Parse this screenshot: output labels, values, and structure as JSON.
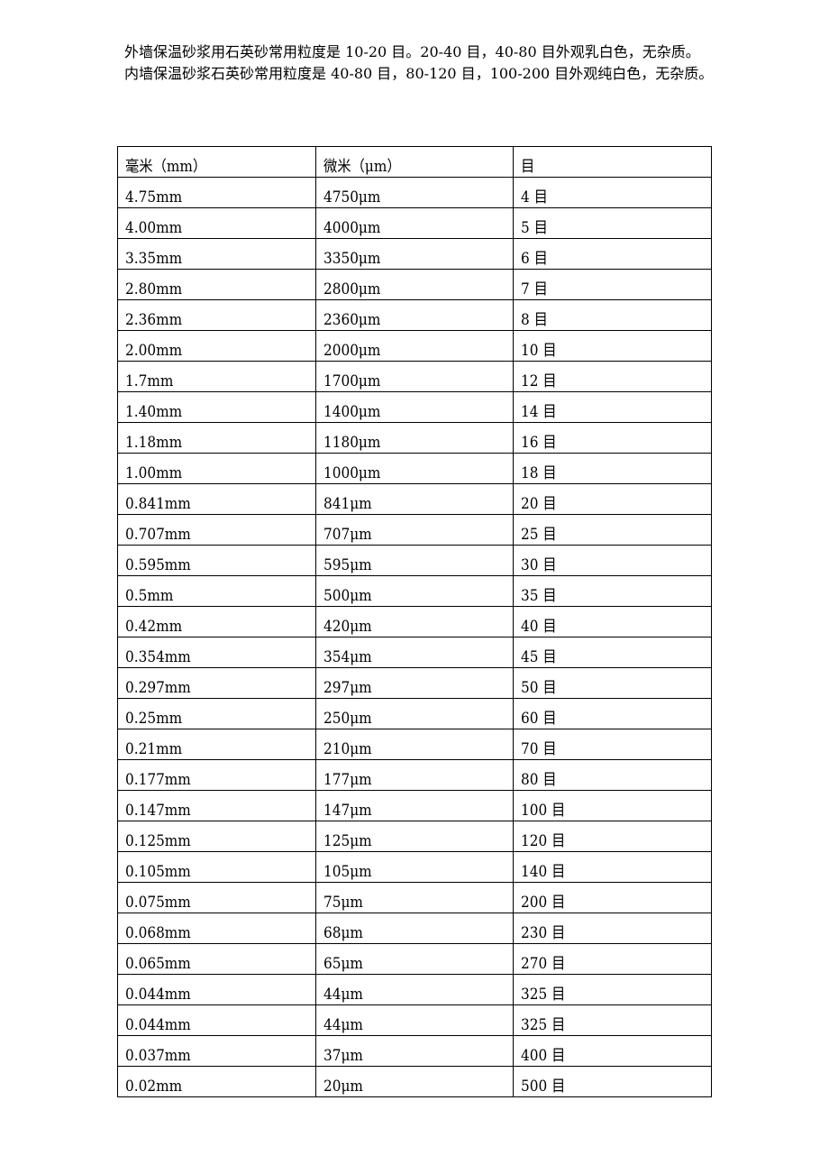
{
  "paragraphs": [
    "外墙保温砂浆用石英砂常用粒度是 10-20 目。20-40 目，40-80 目外观乳白色，无杂质。",
    "内墙保温砂浆石英砂常用粒度是 40-80 目，80-120 目，100-200 目外观纯白色，无杂质。"
  ],
  "table": {
    "headers": [
      "毫米（mm）",
      "微米（μm）",
      "目"
    ],
    "rows": [
      [
        "4.75mm",
        "4750μm",
        "4 目"
      ],
      [
        "4.00mm",
        "4000μm",
        "5 目"
      ],
      [
        "3.35mm",
        "3350μm",
        "6 目"
      ],
      [
        "2.80mm",
        "2800μm",
        "7 目"
      ],
      [
        "2.36mm",
        "2360μm",
        "8 目"
      ],
      [
        "2.00mm",
        "2000μm",
        "10 目"
      ],
      [
        "1.7mm",
        "1700μm",
        "12 目"
      ],
      [
        "1.40mm",
        "1400μm",
        "14 目"
      ],
      [
        "1.18mm",
        "1180μm",
        "16 目"
      ],
      [
        "1.00mm",
        "1000μm",
        "18 目"
      ],
      [
        "0.841mm",
        "841μm",
        "20 目"
      ],
      [
        "0.707mm",
        "707μm",
        "25 目"
      ],
      [
        "0.595mm",
        "595μm",
        "30 目"
      ],
      [
        "0.5mm",
        "500μm",
        "35 目"
      ],
      [
        "0.42mm",
        "420μm",
        "40 目"
      ],
      [
        "0.354mm",
        "354μm",
        "45 目"
      ],
      [
        "0.297mm",
        "297μm",
        "50 目"
      ],
      [
        "0.25mm",
        "250μm",
        "60 目"
      ],
      [
        "0.21mm",
        "210μm",
        "70 目"
      ],
      [
        "0.177mm",
        "177μm",
        "80 目"
      ],
      [
        "0.147mm",
        "147μm",
        "100 目"
      ],
      [
        "0.125mm",
        "125μm",
        "120 目"
      ],
      [
        "0.105mm",
        "105μm",
        "140 目"
      ],
      [
        "0.075mm",
        "75μm",
        "200 目"
      ],
      [
        "0.068mm",
        "68μm",
        "230 目"
      ],
      [
        "0.065mm",
        "65μm",
        "270 目"
      ],
      [
        "0.044mm",
        "44μm",
        "325 目"
      ],
      [
        "0.044mm",
        "44μm",
        "325 目"
      ],
      [
        "0.037mm",
        "37μm",
        "400 目"
      ],
      [
        "0.02mm",
        "20μm",
        "500 目"
      ]
    ]
  }
}
